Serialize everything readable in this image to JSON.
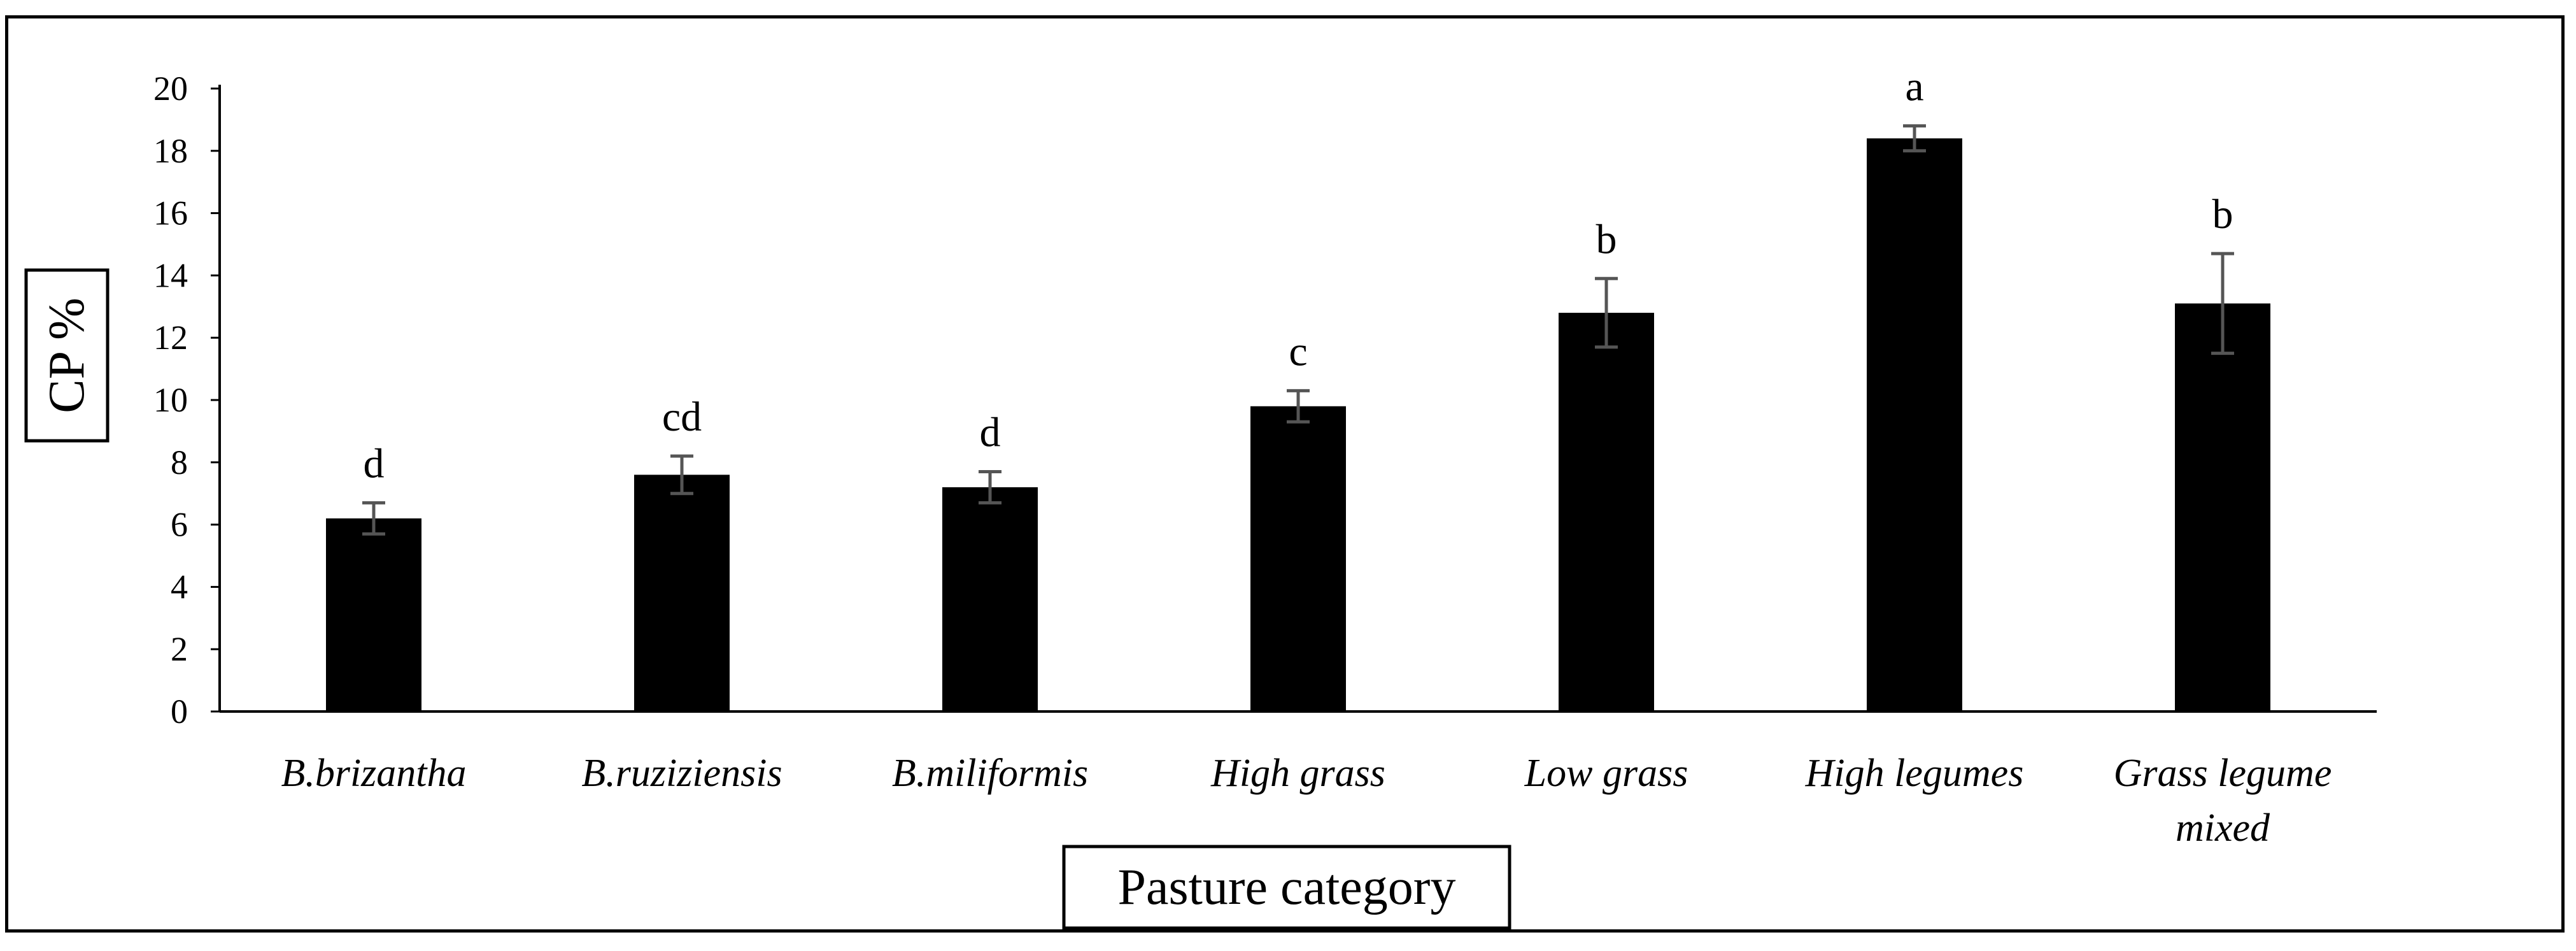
{
  "chart_data": {
    "type": "bar",
    "xlabel": "Pasture category",
    "ylabel": "CP %",
    "ylim": [
      0,
      20
    ],
    "yticks": [
      0,
      2,
      4,
      6,
      8,
      10,
      12,
      14,
      16,
      18,
      20
    ],
    "grid": false,
    "categories": [
      "B.brizantha",
      "B.ruziziensis",
      "B.miliformis",
      "High grass",
      "Low grass",
      "High legumes",
      "Grass legume mixed"
    ],
    "category_lines": [
      [
        "B.brizantha"
      ],
      [
        "B.ruziziensis"
      ],
      [
        "B.miliformis"
      ],
      [
        "High grass"
      ],
      [
        "Low grass"
      ],
      [
        "High legumes"
      ],
      [
        "Grass legume",
        "mixed"
      ]
    ],
    "values": [
      6.2,
      7.6,
      7.2,
      9.8,
      12.8,
      18.4,
      13.1
    ],
    "error": [
      0.5,
      0.6,
      0.5,
      0.5,
      1.1,
      0.4,
      1.6
    ],
    "significance_labels": [
      "d",
      "cd",
      "d",
      "c",
      "b",
      "a",
      "b"
    ],
    "bar_color": "#000000",
    "error_color": "#555555"
  }
}
